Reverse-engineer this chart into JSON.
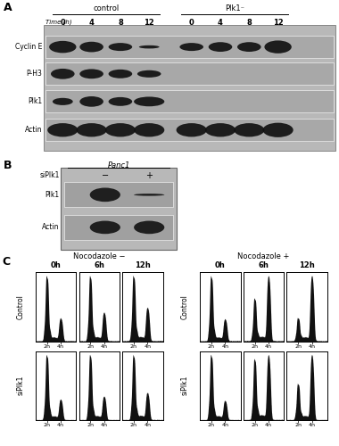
{
  "panel_A": {
    "label": "A",
    "title_control": "control",
    "title_plk1": "Plk1⁻",
    "time_label": "Time (h)",
    "time_points": [
      "0",
      "4",
      "8",
      "12",
      "0",
      "4",
      "8",
      "12"
    ],
    "row_labels": [
      "Cyclin E",
      "P-H3",
      "Plk1",
      "Actin"
    ],
    "bg_color": "#b8b8b8",
    "row_bg_color": "#a8a8a8",
    "band_color": "#111111",
    "band_heights": {
      "Cyclin E": [
        0.75,
        0.65,
        0.5,
        0.2,
        0.5,
        0.6,
        0.6,
        0.8
      ],
      "P-H3": [
        0.65,
        0.6,
        0.55,
        0.45,
        0.0,
        0.0,
        0.0,
        0.0
      ],
      "Plk1": [
        0.45,
        0.65,
        0.55,
        0.6,
        0.0,
        0.0,
        0.0,
        0.0
      ],
      "Actin": [
        0.85,
        0.85,
        0.85,
        0.85,
        0.85,
        0.85,
        0.85,
        0.9
      ]
    },
    "band_widths": {
      "Cyclin E": [
        0.08,
        0.07,
        0.07,
        0.06,
        0.07,
        0.07,
        0.07,
        0.08
      ],
      "P-H3": [
        0.07,
        0.07,
        0.07,
        0.07,
        0.0,
        0.0,
        0.0,
        0.0
      ],
      "Plk1": [
        0.06,
        0.07,
        0.07,
        0.09,
        0.0,
        0.0,
        0.0,
        0.0
      ],
      "Actin": [
        0.09,
        0.09,
        0.09,
        0.09,
        0.09,
        0.09,
        0.09,
        0.09
      ]
    }
  },
  "panel_B": {
    "label": "B",
    "title": "Panc1",
    "row_labels": [
      "Plk1",
      "Actin"
    ],
    "col_labels": [
      "−",
      "+"
    ],
    "col_header": "siPlk1",
    "bg_color": "#b8b8b8",
    "row_bg_color": "#a0a0a0",
    "band_color": "#111111",
    "band_heights": {
      "Plk1": [
        0.75,
        0.12
      ],
      "Actin": [
        0.7,
        0.7
      ]
    }
  },
  "panel_C": {
    "label": "C",
    "nocodazole_minus": "Nocodazole −",
    "nocodazole_plus": "Nocodazole +",
    "time_labels": [
      "0h",
      "6h",
      "12h"
    ],
    "row_labels": [
      "Control",
      "siPlk1"
    ],
    "x_tick_labels": [
      "2n",
      "4n"
    ],
    "hist_color": "#111111"
  }
}
